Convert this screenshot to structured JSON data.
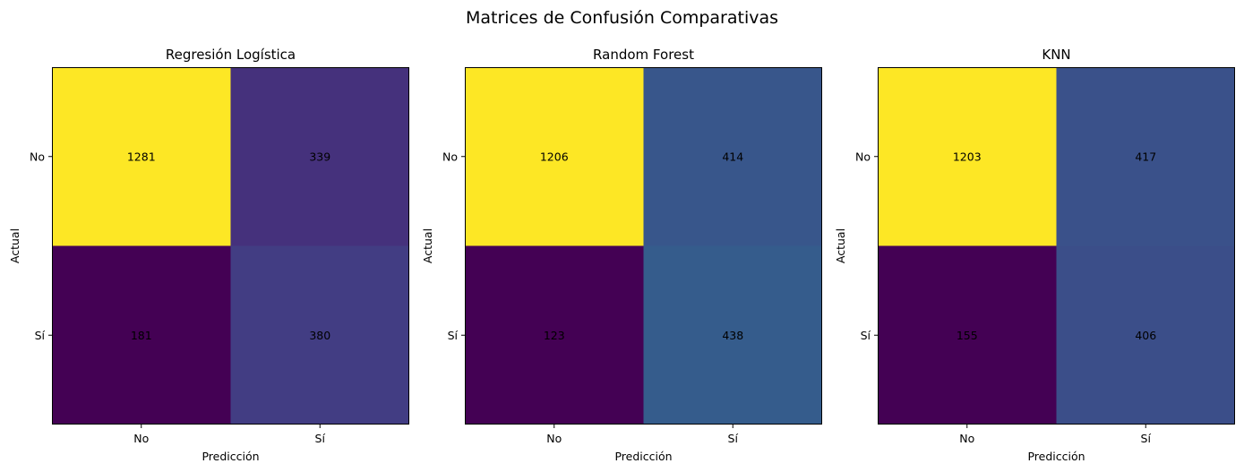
{
  "chart_data": {
    "type": "heatmap",
    "title": "Matrices de Confusión Comparativas",
    "colormap": "viridis",
    "colors": {
      "low": "#440154",
      "high": "#fde725"
    },
    "panels": [
      {
        "title": "Regresión Logística",
        "xlabel": "Predicción",
        "ylabel": "Actual",
        "x_categories": [
          "No",
          "Sí"
        ],
        "y_categories": [
          "No",
          "Sí"
        ],
        "matrix": [
          [
            1281,
            339
          ],
          [
            181,
            380
          ]
        ]
      },
      {
        "title": "Random Forest",
        "xlabel": "Predicción",
        "ylabel": "Actual",
        "x_categories": [
          "No",
          "Sí"
        ],
        "y_categories": [
          "No",
          "Sí"
        ],
        "matrix": [
          [
            1206,
            414
          ],
          [
            123,
            438
          ]
        ]
      },
      {
        "title": "KNN",
        "xlabel": "Predicción",
        "ylabel": "Actual",
        "x_categories": [
          "No",
          "Sí"
        ],
        "y_categories": [
          "No",
          "Sí"
        ],
        "matrix": [
          [
            1203,
            417
          ],
          [
            155,
            406
          ]
        ]
      }
    ]
  }
}
